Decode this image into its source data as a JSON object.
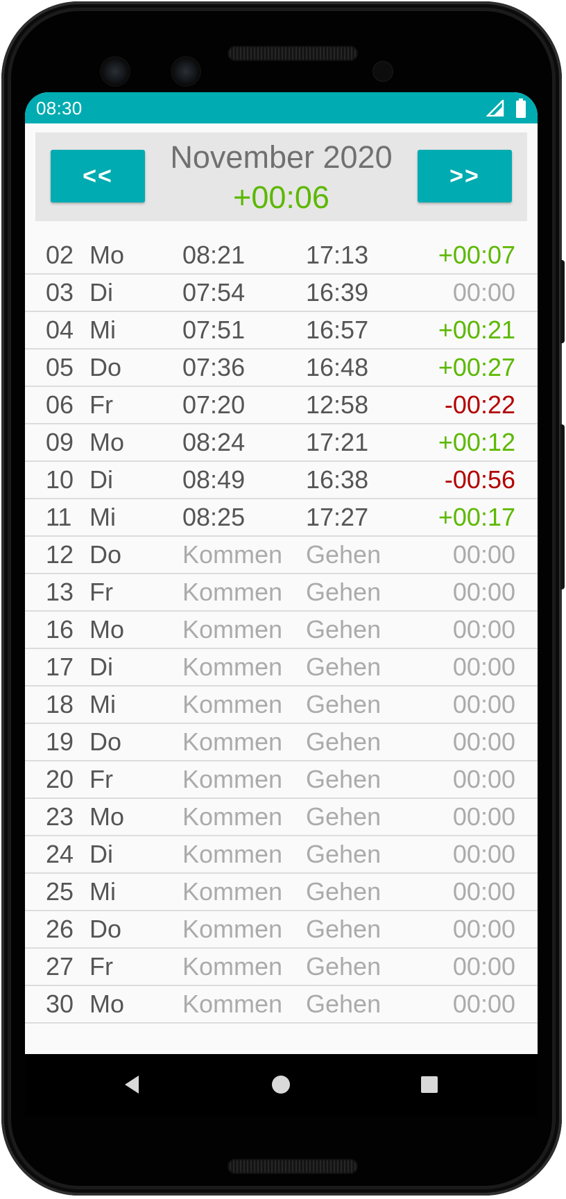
{
  "status_bar": {
    "time": "08:30",
    "icons": [
      "signal-icon",
      "battery-icon"
    ]
  },
  "header": {
    "prev_label": "<<",
    "next_label": ">>",
    "month": "November 2020",
    "balance": "+00:06"
  },
  "days": [
    {
      "day": "02",
      "weekday": "Mo",
      "in": "08:21",
      "out": "17:13",
      "diff": "+00:07",
      "status": "pos"
    },
    {
      "day": "03",
      "weekday": "Di",
      "in": "07:54",
      "out": "16:39",
      "diff": "00:00",
      "status": "zero"
    },
    {
      "day": "04",
      "weekday": "Mi",
      "in": "07:51",
      "out": "16:57",
      "diff": "+00:21",
      "status": "pos"
    },
    {
      "day": "05",
      "weekday": "Do",
      "in": "07:36",
      "out": "16:48",
      "diff": "+00:27",
      "status": "pos"
    },
    {
      "day": "06",
      "weekday": "Fr",
      "in": "07:20",
      "out": "12:58",
      "diff": "-00:22",
      "status": "neg"
    },
    {
      "day": "09",
      "weekday": "Mo",
      "in": "08:24",
      "out": "17:21",
      "diff": "+00:12",
      "status": "pos"
    },
    {
      "day": "10",
      "weekday": "Di",
      "in": "08:49",
      "out": "16:38",
      "diff": "-00:56",
      "status": "neg"
    },
    {
      "day": "11",
      "weekday": "Mi",
      "in": "08:25",
      "out": "17:27",
      "diff": "+00:17",
      "status": "pos"
    },
    {
      "day": "12",
      "weekday": "Do",
      "in": "Kommen",
      "out": "Gehen",
      "diff": "00:00",
      "status": "zero",
      "empty": true
    },
    {
      "day": "13",
      "weekday": "Fr",
      "in": "Kommen",
      "out": "Gehen",
      "diff": "00:00",
      "status": "zero",
      "empty": true
    },
    {
      "day": "16",
      "weekday": "Mo",
      "in": "Kommen",
      "out": "Gehen",
      "diff": "00:00",
      "status": "zero",
      "empty": true
    },
    {
      "day": "17",
      "weekday": "Di",
      "in": "Kommen",
      "out": "Gehen",
      "diff": "00:00",
      "status": "zero",
      "empty": true
    },
    {
      "day": "18",
      "weekday": "Mi",
      "in": "Kommen",
      "out": "Gehen",
      "diff": "00:00",
      "status": "zero",
      "empty": true
    },
    {
      "day": "19",
      "weekday": "Do",
      "in": "Kommen",
      "out": "Gehen",
      "diff": "00:00",
      "status": "zero",
      "empty": true
    },
    {
      "day": "20",
      "weekday": "Fr",
      "in": "Kommen",
      "out": "Gehen",
      "diff": "00:00",
      "status": "zero",
      "empty": true
    },
    {
      "day": "23",
      "weekday": "Mo",
      "in": "Kommen",
      "out": "Gehen",
      "diff": "00:00",
      "status": "zero",
      "empty": true
    },
    {
      "day": "24",
      "weekday": "Di",
      "in": "Kommen",
      "out": "Gehen",
      "diff": "00:00",
      "status": "zero",
      "empty": true
    },
    {
      "day": "25",
      "weekday": "Mi",
      "in": "Kommen",
      "out": "Gehen",
      "diff": "00:00",
      "status": "zero",
      "empty": true
    },
    {
      "day": "26",
      "weekday": "Do",
      "in": "Kommen",
      "out": "Gehen",
      "diff": "00:00",
      "status": "zero",
      "empty": true
    },
    {
      "day": "27",
      "weekday": "Fr",
      "in": "Kommen",
      "out": "Gehen",
      "diff": "00:00",
      "status": "zero",
      "empty": true
    },
    {
      "day": "30",
      "weekday": "Mo",
      "in": "Kommen",
      "out": "Gehen",
      "diff": "00:00",
      "status": "zero",
      "empty": true
    }
  ],
  "system_nav": {
    "icons": [
      "back-icon",
      "home-icon",
      "recents-icon"
    ]
  },
  "colors": {
    "accent": "#00acb1",
    "positive": "#5cb800",
    "negative": "#b30000",
    "muted": "#ababab"
  }
}
